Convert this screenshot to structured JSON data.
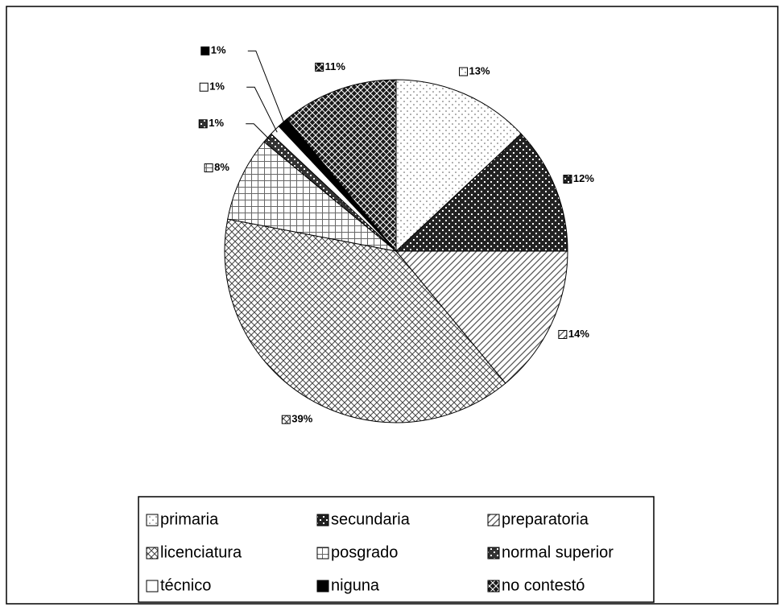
{
  "chart_data": {
    "type": "pie",
    "categories": [
      "primaria",
      "secundaria",
      "preparatoria",
      "licenciatura",
      "posgrado",
      "normal superior",
      "técnico",
      "niguna",
      "no contestó"
    ],
    "values": [
      13,
      12,
      14,
      39,
      8,
      1,
      1,
      1,
      11
    ],
    "value_labels": [
      "13%",
      "12%",
      "14%",
      "39%",
      "8%",
      "1%",
      "1%",
      "1%",
      "11%"
    ],
    "colors": [
      "#ffffff",
      "#222222",
      "#555555",
      "#444444",
      "#666666",
      "#333333",
      "#ffffff",
      "#000000",
      "#1a1a1a"
    ],
    "legend": "bottom"
  }
}
